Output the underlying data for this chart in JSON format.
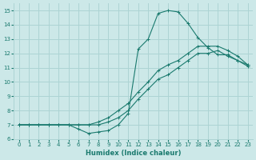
{
  "xlabel": "Humidex (Indice chaleur)",
  "bg_color": "#cce8e8",
  "grid_color": "#add4d4",
  "line_color": "#1a7a6e",
  "xlim": [
    -0.5,
    23.5
  ],
  "ylim": [
    6.0,
    15.5
  ],
  "xticks": [
    0,
    1,
    2,
    3,
    4,
    5,
    6,
    7,
    8,
    9,
    10,
    11,
    12,
    13,
    14,
    15,
    16,
    17,
    18,
    19,
    20,
    21,
    22,
    23
  ],
  "yticks": [
    6,
    7,
    8,
    9,
    10,
    11,
    12,
    13,
    14,
    15
  ],
  "line1_x": [
    0,
    1,
    2,
    3,
    4,
    5,
    6,
    7,
    8,
    9,
    10,
    11,
    12,
    13,
    14,
    15,
    16,
    17,
    18,
    19,
    20,
    21,
    22,
    23
  ],
  "line1_y": [
    7.0,
    7.0,
    7.0,
    7.0,
    7.0,
    7.0,
    6.7,
    6.4,
    6.5,
    6.6,
    7.0,
    7.8,
    12.3,
    13.0,
    14.8,
    15.0,
    14.9,
    14.1,
    13.1,
    12.4,
    11.9,
    11.9,
    11.5,
    11.2
  ],
  "line2_x": [
    0,
    1,
    2,
    3,
    4,
    5,
    6,
    7,
    8,
    9,
    10,
    11,
    12,
    13,
    14,
    15,
    16,
    17,
    18,
    19,
    20,
    21,
    22,
    23
  ],
  "line2_y": [
    7.0,
    7.0,
    7.0,
    7.0,
    7.0,
    7.0,
    7.0,
    7.0,
    7.2,
    7.5,
    8.0,
    8.5,
    9.3,
    10.0,
    10.8,
    11.2,
    11.5,
    12.0,
    12.5,
    12.5,
    12.5,
    12.2,
    11.8,
    11.2
  ],
  "line3_x": [
    0,
    1,
    2,
    3,
    4,
    5,
    6,
    7,
    8,
    9,
    10,
    11,
    12,
    13,
    14,
    15,
    16,
    17,
    18,
    19,
    20,
    21,
    22,
    23
  ],
  "line3_y": [
    7.0,
    7.0,
    7.0,
    7.0,
    7.0,
    7.0,
    7.0,
    7.0,
    7.0,
    7.2,
    7.5,
    8.0,
    8.8,
    9.5,
    10.2,
    10.5,
    11.0,
    11.5,
    12.0,
    12.0,
    12.2,
    11.8,
    11.5,
    11.1
  ]
}
